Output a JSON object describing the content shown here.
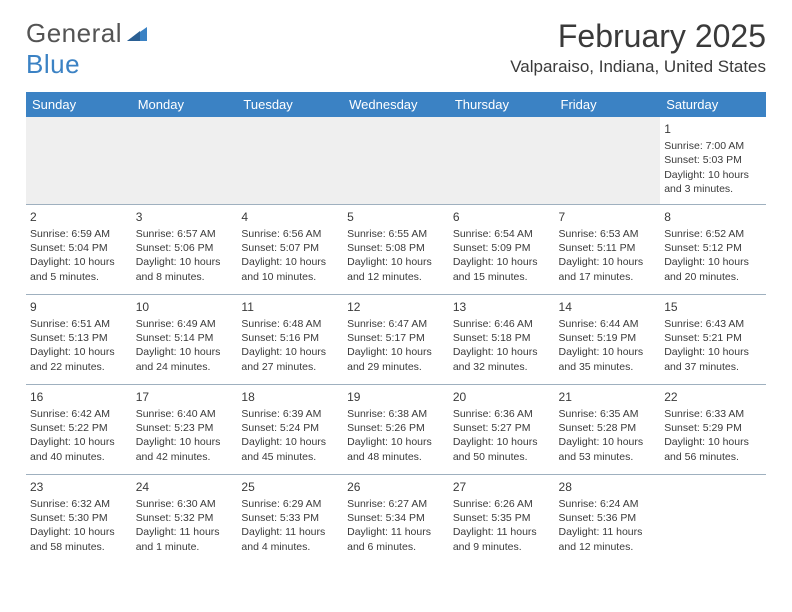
{
  "logo": {
    "part1": "General",
    "part2": "Blue"
  },
  "title": "February 2025",
  "location": "Valparaiso, Indiana, United States",
  "header_bg": "#3b82c4",
  "header_text": "#ffffff",
  "border_color": "#9fb0bf",
  "empty_bg": "#efefef",
  "day_headers": [
    "Sunday",
    "Monday",
    "Tuesday",
    "Wednesday",
    "Thursday",
    "Friday",
    "Saturday"
  ],
  "weeks": [
    [
      null,
      null,
      null,
      null,
      null,
      null,
      {
        "n": "1",
        "sunrise": "Sunrise: 7:00 AM",
        "sunset": "Sunset: 5:03 PM",
        "d1": "Daylight: 10 hours",
        "d2": "and 3 minutes."
      }
    ],
    [
      {
        "n": "2",
        "sunrise": "Sunrise: 6:59 AM",
        "sunset": "Sunset: 5:04 PM",
        "d1": "Daylight: 10 hours",
        "d2": "and 5 minutes."
      },
      {
        "n": "3",
        "sunrise": "Sunrise: 6:57 AM",
        "sunset": "Sunset: 5:06 PM",
        "d1": "Daylight: 10 hours",
        "d2": "and 8 minutes."
      },
      {
        "n": "4",
        "sunrise": "Sunrise: 6:56 AM",
        "sunset": "Sunset: 5:07 PM",
        "d1": "Daylight: 10 hours",
        "d2": "and 10 minutes."
      },
      {
        "n": "5",
        "sunrise": "Sunrise: 6:55 AM",
        "sunset": "Sunset: 5:08 PM",
        "d1": "Daylight: 10 hours",
        "d2": "and 12 minutes."
      },
      {
        "n": "6",
        "sunrise": "Sunrise: 6:54 AM",
        "sunset": "Sunset: 5:09 PM",
        "d1": "Daylight: 10 hours",
        "d2": "and 15 minutes."
      },
      {
        "n": "7",
        "sunrise": "Sunrise: 6:53 AM",
        "sunset": "Sunset: 5:11 PM",
        "d1": "Daylight: 10 hours",
        "d2": "and 17 minutes."
      },
      {
        "n": "8",
        "sunrise": "Sunrise: 6:52 AM",
        "sunset": "Sunset: 5:12 PM",
        "d1": "Daylight: 10 hours",
        "d2": "and 20 minutes."
      }
    ],
    [
      {
        "n": "9",
        "sunrise": "Sunrise: 6:51 AM",
        "sunset": "Sunset: 5:13 PM",
        "d1": "Daylight: 10 hours",
        "d2": "and 22 minutes."
      },
      {
        "n": "10",
        "sunrise": "Sunrise: 6:49 AM",
        "sunset": "Sunset: 5:14 PM",
        "d1": "Daylight: 10 hours",
        "d2": "and 24 minutes."
      },
      {
        "n": "11",
        "sunrise": "Sunrise: 6:48 AM",
        "sunset": "Sunset: 5:16 PM",
        "d1": "Daylight: 10 hours",
        "d2": "and 27 minutes."
      },
      {
        "n": "12",
        "sunrise": "Sunrise: 6:47 AM",
        "sunset": "Sunset: 5:17 PM",
        "d1": "Daylight: 10 hours",
        "d2": "and 29 minutes."
      },
      {
        "n": "13",
        "sunrise": "Sunrise: 6:46 AM",
        "sunset": "Sunset: 5:18 PM",
        "d1": "Daylight: 10 hours",
        "d2": "and 32 minutes."
      },
      {
        "n": "14",
        "sunrise": "Sunrise: 6:44 AM",
        "sunset": "Sunset: 5:19 PM",
        "d1": "Daylight: 10 hours",
        "d2": "and 35 minutes."
      },
      {
        "n": "15",
        "sunrise": "Sunrise: 6:43 AM",
        "sunset": "Sunset: 5:21 PM",
        "d1": "Daylight: 10 hours",
        "d2": "and 37 minutes."
      }
    ],
    [
      {
        "n": "16",
        "sunrise": "Sunrise: 6:42 AM",
        "sunset": "Sunset: 5:22 PM",
        "d1": "Daylight: 10 hours",
        "d2": "and 40 minutes."
      },
      {
        "n": "17",
        "sunrise": "Sunrise: 6:40 AM",
        "sunset": "Sunset: 5:23 PM",
        "d1": "Daylight: 10 hours",
        "d2": "and 42 minutes."
      },
      {
        "n": "18",
        "sunrise": "Sunrise: 6:39 AM",
        "sunset": "Sunset: 5:24 PM",
        "d1": "Daylight: 10 hours",
        "d2": "and 45 minutes."
      },
      {
        "n": "19",
        "sunrise": "Sunrise: 6:38 AM",
        "sunset": "Sunset: 5:26 PM",
        "d1": "Daylight: 10 hours",
        "d2": "and 48 minutes."
      },
      {
        "n": "20",
        "sunrise": "Sunrise: 6:36 AM",
        "sunset": "Sunset: 5:27 PM",
        "d1": "Daylight: 10 hours",
        "d2": "and 50 minutes."
      },
      {
        "n": "21",
        "sunrise": "Sunrise: 6:35 AM",
        "sunset": "Sunset: 5:28 PM",
        "d1": "Daylight: 10 hours",
        "d2": "and 53 minutes."
      },
      {
        "n": "22",
        "sunrise": "Sunrise: 6:33 AM",
        "sunset": "Sunset: 5:29 PM",
        "d1": "Daylight: 10 hours",
        "d2": "and 56 minutes."
      }
    ],
    [
      {
        "n": "23",
        "sunrise": "Sunrise: 6:32 AM",
        "sunset": "Sunset: 5:30 PM",
        "d1": "Daylight: 10 hours",
        "d2": "and 58 minutes."
      },
      {
        "n": "24",
        "sunrise": "Sunrise: 6:30 AM",
        "sunset": "Sunset: 5:32 PM",
        "d1": "Daylight: 11 hours",
        "d2": "and 1 minute."
      },
      {
        "n": "25",
        "sunrise": "Sunrise: 6:29 AM",
        "sunset": "Sunset: 5:33 PM",
        "d1": "Daylight: 11 hours",
        "d2": "and 4 minutes."
      },
      {
        "n": "26",
        "sunrise": "Sunrise: 6:27 AM",
        "sunset": "Sunset: 5:34 PM",
        "d1": "Daylight: 11 hours",
        "d2": "and 6 minutes."
      },
      {
        "n": "27",
        "sunrise": "Sunrise: 6:26 AM",
        "sunset": "Sunset: 5:35 PM",
        "d1": "Daylight: 11 hours",
        "d2": "and 9 minutes."
      },
      {
        "n": "28",
        "sunrise": "Sunrise: 6:24 AM",
        "sunset": "Sunset: 5:36 PM",
        "d1": "Daylight: 11 hours",
        "d2": "and 12 minutes."
      },
      null
    ]
  ]
}
